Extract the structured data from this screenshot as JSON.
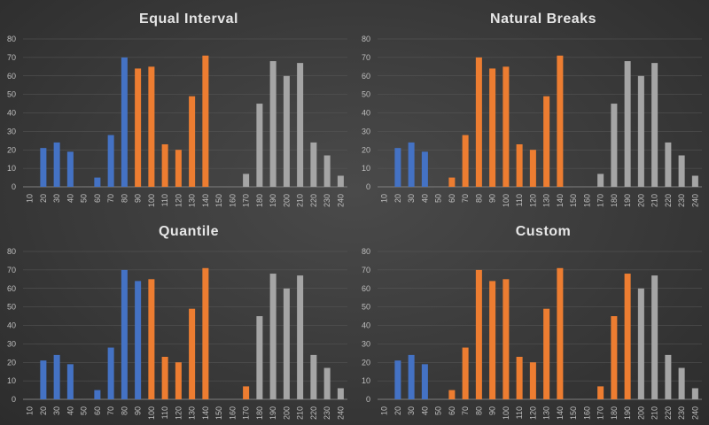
{
  "colors": {
    "blue": "#4472C4",
    "orange": "#ED7D31",
    "gray": "#A5A5A5",
    "gridline": "#5a5a5a",
    "axis": "#7f7f7f"
  },
  "chart_data": [
    {
      "type": "bar",
      "title": "Equal Interval",
      "categories": [
        "10",
        "20",
        "30",
        "40",
        "50",
        "60",
        "70",
        "80",
        "90",
        "100",
        "110",
        "120",
        "130",
        "140",
        "150",
        "160",
        "170",
        "180",
        "190",
        "200",
        "210",
        "220",
        "230",
        "240"
      ],
      "values": [
        0,
        21,
        24,
        19,
        0,
        5,
        28,
        70,
        64,
        65,
        23,
        20,
        49,
        71,
        0,
        0,
        7,
        45,
        68,
        60,
        67,
        24,
        17,
        6
      ],
      "classes": [
        "blue",
        "blue",
        "blue",
        "blue",
        "blue",
        "blue",
        "blue",
        "blue",
        "orange",
        "orange",
        "orange",
        "orange",
        "orange",
        "orange",
        "orange",
        "gray",
        "gray",
        "gray",
        "gray",
        "gray",
        "gray",
        "gray",
        "gray",
        "gray"
      ],
      "yticks": [
        "0",
        "10",
        "20",
        "30",
        "40",
        "50",
        "60",
        "70",
        "80"
      ],
      "ylim": [
        0,
        80
      ]
    },
    {
      "type": "bar",
      "title": "Natural Breaks",
      "categories": [
        "10",
        "20",
        "30",
        "40",
        "50",
        "60",
        "70",
        "80",
        "90",
        "100",
        "110",
        "120",
        "130",
        "140",
        "150",
        "160",
        "170",
        "180",
        "190",
        "200",
        "210",
        "220",
        "230",
        "240"
      ],
      "values": [
        0,
        21,
        24,
        19,
        0,
        5,
        28,
        70,
        64,
        65,
        23,
        20,
        49,
        71,
        0,
        0,
        7,
        45,
        68,
        60,
        67,
        24,
        17,
        6
      ],
      "classes": [
        "blue",
        "blue",
        "blue",
        "blue",
        "blue",
        "orange",
        "orange",
        "orange",
        "orange",
        "orange",
        "orange",
        "orange",
        "orange",
        "orange",
        "orange",
        "gray",
        "gray",
        "gray",
        "gray",
        "gray",
        "gray",
        "gray",
        "gray",
        "gray"
      ],
      "yticks": [
        "0",
        "10",
        "20",
        "30",
        "40",
        "50",
        "60",
        "70",
        "80"
      ],
      "ylim": [
        0,
        80
      ]
    },
    {
      "type": "bar",
      "title": "Quantile",
      "categories": [
        "10",
        "20",
        "30",
        "40",
        "50",
        "60",
        "70",
        "80",
        "90",
        "100",
        "110",
        "120",
        "130",
        "140",
        "150",
        "160",
        "170",
        "180",
        "190",
        "200",
        "210",
        "220",
        "230",
        "240"
      ],
      "values": [
        0,
        21,
        24,
        19,
        0,
        5,
        28,
        70,
        64,
        65,
        23,
        20,
        49,
        71,
        0,
        0,
        7,
        45,
        68,
        60,
        67,
        24,
        17,
        6
      ],
      "classes": [
        "blue",
        "blue",
        "blue",
        "blue",
        "blue",
        "blue",
        "blue",
        "blue",
        "blue",
        "orange",
        "orange",
        "orange",
        "orange",
        "orange",
        "orange",
        "orange",
        "orange",
        "gray",
        "gray",
        "gray",
        "gray",
        "gray",
        "gray",
        "gray"
      ],
      "yticks": [
        "0",
        "10",
        "20",
        "30",
        "40",
        "50",
        "60",
        "70",
        "80"
      ],
      "ylim": [
        0,
        80
      ]
    },
    {
      "type": "bar",
      "title": "Custom",
      "categories": [
        "10",
        "20",
        "30",
        "40",
        "50",
        "60",
        "70",
        "80",
        "90",
        "100",
        "110",
        "120",
        "130",
        "140",
        "150",
        "160",
        "170",
        "180",
        "190",
        "200",
        "210",
        "220",
        "230",
        "240"
      ],
      "values": [
        0,
        21,
        24,
        19,
        0,
        5,
        28,
        70,
        64,
        65,
        23,
        20,
        49,
        71,
        0,
        0,
        7,
        45,
        68,
        60,
        67,
        24,
        17,
        6
      ],
      "classes": [
        "blue",
        "blue",
        "blue",
        "blue",
        "blue",
        "orange",
        "orange",
        "orange",
        "orange",
        "orange",
        "orange",
        "orange",
        "orange",
        "orange",
        "orange",
        "orange",
        "orange",
        "orange",
        "orange",
        "gray",
        "gray",
        "gray",
        "gray",
        "gray"
      ],
      "yticks": [
        "0",
        "10",
        "20",
        "30",
        "40",
        "50",
        "60",
        "70",
        "80"
      ],
      "ylim": [
        0,
        80
      ]
    }
  ]
}
